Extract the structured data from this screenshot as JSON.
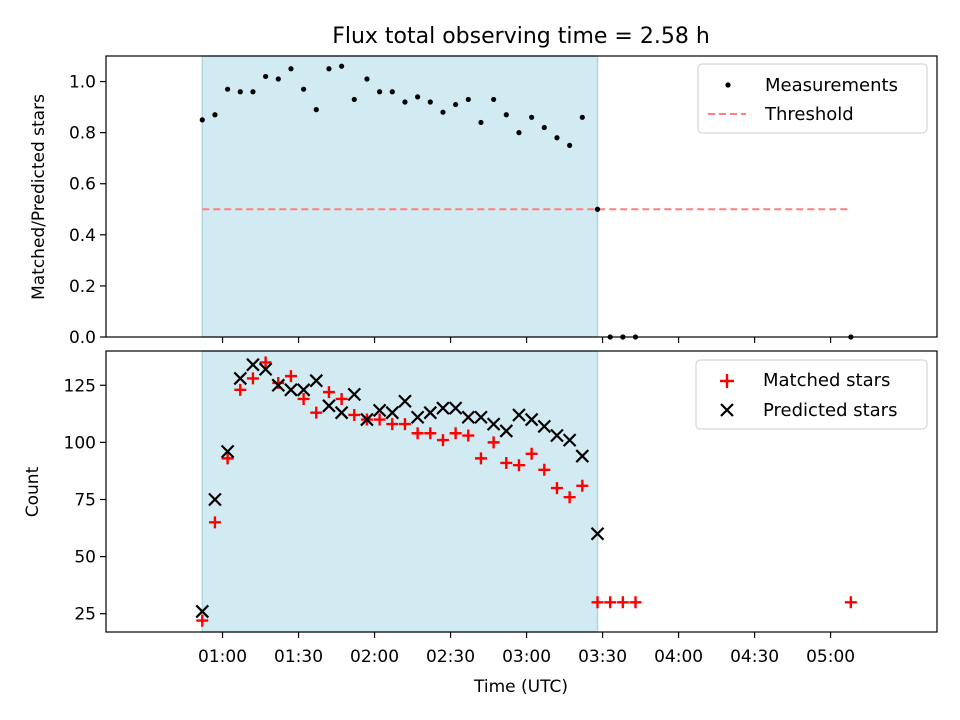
{
  "chart_data": [
    {
      "type": "scatter",
      "title": "Flux total observing time = 2.58 h",
      "xlabel": "",
      "ylabel": "Matched/Predicted stars",
      "ylim": [
        0,
        1.1
      ],
      "yticks": [
        "0.0",
        "0.2",
        "0.4",
        "0.6",
        "0.8",
        "1.0"
      ],
      "shaded_interval": [
        "00:52",
        "03:28"
      ],
      "threshold": {
        "value": 0.5,
        "x_range": [
          "00:52",
          "05:08"
        ]
      },
      "series": [
        {
          "name": "Measurements",
          "x": [
            "00:52",
            "00:57",
            "01:02",
            "01:07",
            "01:12",
            "01:17",
            "01:22",
            "01:27",
            "01:32",
            "01:37",
            "01:42",
            "01:47",
            "01:52",
            "01:57",
            "02:02",
            "02:07",
            "02:12",
            "02:17",
            "02:22",
            "02:27",
            "02:32",
            "02:37",
            "02:42",
            "02:47",
            "02:52",
            "02:57",
            "03:02",
            "03:07",
            "03:12",
            "03:17",
            "03:22",
            "03:28",
            "03:33",
            "03:38",
            "03:43",
            "05:08"
          ],
          "y": [
            0.85,
            0.87,
            0.97,
            0.96,
            0.96,
            1.02,
            1.01,
            1.05,
            0.97,
            0.89,
            1.05,
            1.06,
            0.93,
            1.01,
            0.96,
            0.96,
            0.92,
            0.94,
            0.92,
            0.88,
            0.91,
            0.93,
            0.84,
            0.93,
            0.87,
            0.8,
            0.86,
            0.82,
            0.78,
            0.75,
            0.86,
            0.5,
            0.0,
            0.0,
            0.0,
            0.0
          ]
        },
        {
          "name": "Threshold",
          "style": "dashed"
        }
      ]
    },
    {
      "type": "scatter",
      "xlabel": "Time (UTC)",
      "ylabel": "Count",
      "ylim": [
        17,
        140
      ],
      "yticks": [
        "25",
        "50",
        "75",
        "100",
        "125"
      ],
      "xticks": [
        "01:00",
        "01:30",
        "02:00",
        "02:30",
        "03:00",
        "03:30",
        "04:00",
        "04:30",
        "05:00"
      ],
      "shaded_interval": [
        "00:52",
        "03:28"
      ],
      "series": [
        {
          "name": "Matched stars",
          "marker": "plus",
          "x": [
            "00:52",
            "00:57",
            "01:02",
            "01:07",
            "01:12",
            "01:17",
            "01:22",
            "01:27",
            "01:32",
            "01:37",
            "01:42",
            "01:47",
            "01:52",
            "01:57",
            "02:02",
            "02:07",
            "02:12",
            "02:17",
            "02:22",
            "02:27",
            "02:32",
            "02:37",
            "02:42",
            "02:47",
            "02:52",
            "02:57",
            "03:02",
            "03:07",
            "03:12",
            "03:17",
            "03:22",
            "03:28",
            "03:33",
            "03:38",
            "03:43",
            "05:08"
          ],
          "y": [
            22,
            65,
            93,
            123,
            128,
            135,
            126,
            129,
            119,
            113,
            122,
            119,
            112,
            110,
            110,
            108,
            108,
            104,
            104,
            101,
            104,
            103,
            93,
            100,
            91,
            90,
            95,
            88,
            80,
            76,
            81,
            30,
            30,
            30,
            30,
            30
          ]
        },
        {
          "name": "Predicted stars",
          "marker": "x",
          "x": [
            "00:52",
            "00:57",
            "01:02",
            "01:07",
            "01:12",
            "01:17",
            "01:22",
            "01:27",
            "01:32",
            "01:37",
            "01:42",
            "01:47",
            "01:52",
            "01:57",
            "02:02",
            "02:07",
            "02:12",
            "02:17",
            "02:22",
            "02:27",
            "02:32",
            "02:37",
            "02:42",
            "02:47",
            "02:52",
            "02:57",
            "03:02",
            "03:07",
            "03:12",
            "03:17",
            "03:22",
            "03:28"
          ],
          "y": [
            26,
            75,
            96,
            128,
            134,
            132,
            125,
            123,
            123,
            127,
            116,
            113,
            121,
            110,
            114,
            113,
            118,
            111,
            113,
            115,
            115,
            111,
            111,
            108,
            105,
            112,
            110,
            107,
            103,
            101,
            94,
            60
          ]
        }
      ]
    }
  ],
  "colors": {
    "shade": "#add8e6",
    "threshold": "#ff7f7f",
    "matched": "#ff0000",
    "predicted": "#000000",
    "measurement": "#000000"
  }
}
